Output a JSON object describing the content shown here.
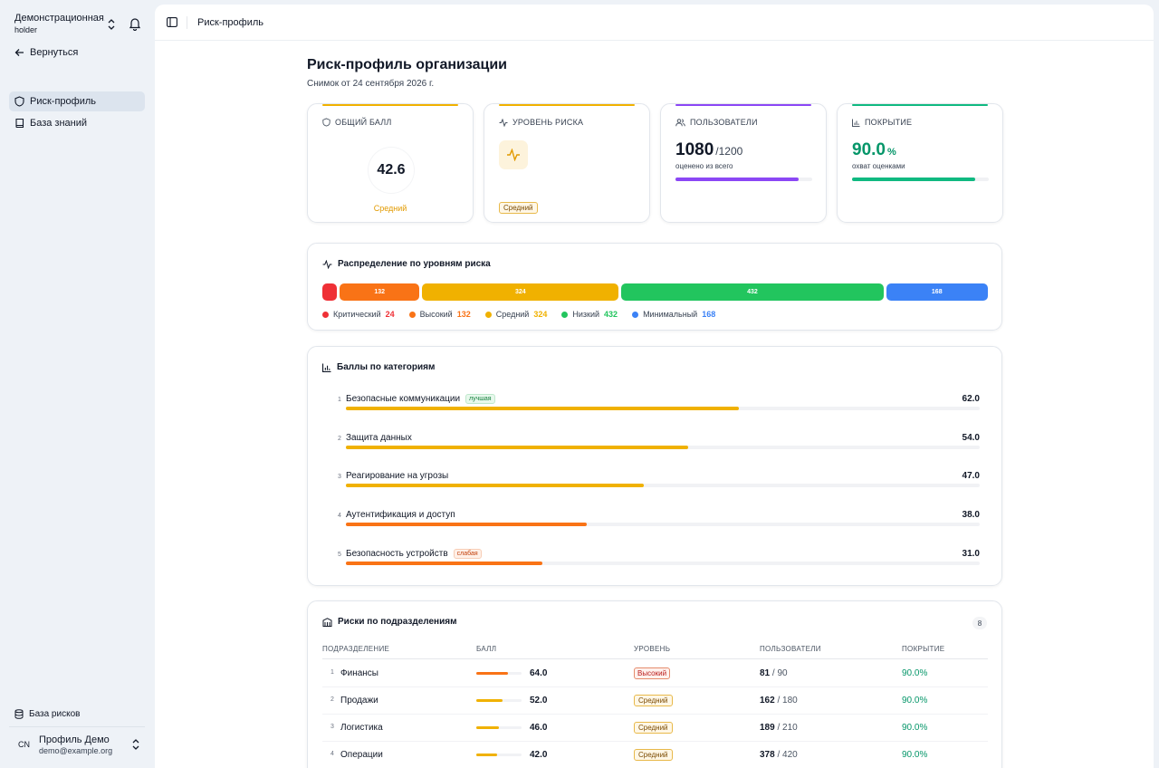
{
  "sidebar": {
    "org_name": "Демонстрационная...",
    "org_sub": "holder",
    "back": "Вернуться",
    "items": [
      {
        "label": "Риск-профиль",
        "icon": "shield-icon",
        "active": true
      },
      {
        "label": "База знаний",
        "icon": "book-icon",
        "active": false
      }
    ],
    "risk_db": "База рисков",
    "profile": {
      "initials": "CN",
      "name": "Профиль Демо",
      "email": "demo@example.org"
    }
  },
  "topbar": {
    "breadcrumb": "Риск-профиль"
  },
  "page": {
    "title": "Риск-профиль организации",
    "subtitle": "Снимок от 24 сентября 2026 г."
  },
  "cards": {
    "score": {
      "label": "ОБЩИЙ БАЛЛ",
      "value": "42.6",
      "level": "Средний",
      "accent": "#f0b100"
    },
    "risk": {
      "label": "УРОВЕНЬ РИСКА",
      "level": "Средний",
      "accent": "#f0b100"
    },
    "users": {
      "label": "ПОЛЬЗОВАТЕЛИ",
      "value": "1080",
      "total": "/1200",
      "sub": "оценено из всего",
      "fraction": 0.9,
      "accent": "#8b47f5"
    },
    "coverage": {
      "label": "ПОКРЫТИЕ",
      "value": "90.0",
      "unit": "%",
      "sub": "охват оценками",
      "fraction": 0.9,
      "accent": "#10b981"
    }
  },
  "distribution": {
    "title": "Распределение по уровням риска",
    "levels": [
      {
        "name": "Критический",
        "count": 24,
        "color": "#ef3036",
        "show_label": false
      },
      {
        "name": "Высокий",
        "count": 132,
        "color": "#f97316",
        "show_label": true
      },
      {
        "name": "Средний",
        "count": 324,
        "color": "#f0b100",
        "show_label": true
      },
      {
        "name": "Низкий",
        "count": 432,
        "color": "#22c55e",
        "show_label": true
      },
      {
        "name": "Минимальный",
        "count": 168,
        "color": "#3b82f6",
        "show_label": true
      }
    ]
  },
  "categories": {
    "title": "Баллы по категориям",
    "items": [
      {
        "index": "1",
        "name": "Безопасные коммуникации",
        "tag": "лучшая",
        "tag_type": "best",
        "score": "62.0",
        "value": 62,
        "color": "#f0b100"
      },
      {
        "index": "2",
        "name": "Защита данных",
        "tag": "",
        "tag_type": "",
        "score": "54.0",
        "value": 54,
        "color": "#f0b100"
      },
      {
        "index": "3",
        "name": "Реагирование на угрозы",
        "tag": "",
        "tag_type": "",
        "score": "47.0",
        "value": 47,
        "color": "#f0b100"
      },
      {
        "index": "4",
        "name": "Аутентификация и доступ",
        "tag": "",
        "tag_type": "",
        "score": "38.0",
        "value": 38,
        "color": "#f97316"
      },
      {
        "index": "5",
        "name": "Безопасность устройств",
        "tag": "слабая",
        "tag_type": "worst",
        "score": "31.0",
        "value": 31,
        "color": "#f97316"
      }
    ]
  },
  "departments": {
    "title": "Риски по подразделениям",
    "count": "8",
    "headers": {
      "dept": "ПОДРАЗДЕЛЕНИЕ",
      "score": "БАЛЛ",
      "level": "УРОВЕНЬ",
      "users": "ПОЛЬЗОВАТЕЛИ",
      "coverage": "ПОКРЫТИЕ"
    },
    "rows": [
      {
        "index": "1",
        "name": "Финансы",
        "score": "64.0",
        "value": 64,
        "level": "Высокий",
        "level_type": "high",
        "assessed": "81",
        "total": " / 90",
        "coverage": "90.0%",
        "color": "#f97316"
      },
      {
        "index": "2",
        "name": "Продажи",
        "score": "52.0",
        "value": 52,
        "level": "Средний",
        "level_type": "medium",
        "assessed": "162",
        "total": " / 180",
        "coverage": "90.0%",
        "color": "#f0b100"
      },
      {
        "index": "3",
        "name": "Логистика",
        "score": "46.0",
        "value": 46,
        "level": "Средний",
        "level_type": "medium",
        "assessed": "189",
        "total": " / 210",
        "coverage": "90.0%",
        "color": "#f0b100"
      },
      {
        "index": "4",
        "name": "Операции",
        "score": "42.0",
        "value": 42,
        "level": "Средний",
        "level_type": "medium",
        "assessed": "378",
        "total": " / 420",
        "coverage": "90.0%",
        "color": "#f0b100"
      }
    ]
  }
}
